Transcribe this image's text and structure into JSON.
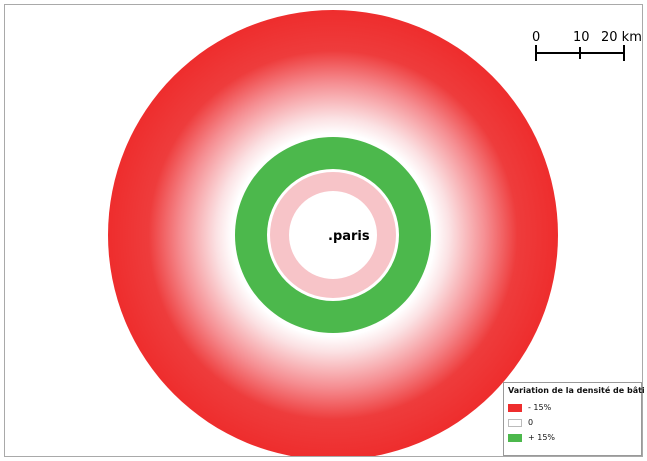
{
  "map": {
    "city_label": ".paris",
    "colors": {
      "decrease": "#ee2d2d",
      "neutral": "#ffffff",
      "increase": "#4cb84c",
      "light_pink": "#f7c4c8"
    }
  },
  "scale_bar": {
    "labels": [
      "0",
      "10",
      "20 km"
    ]
  },
  "legend": {
    "title": "Variation de la densité de bâti",
    "items": [
      {
        "label": "- 15%",
        "color": "#ee2d2d"
      },
      {
        "label": "0",
        "color": "#ffffff"
      },
      {
        "label": "+ 15%",
        "color": "#4cb84c"
      }
    ]
  }
}
